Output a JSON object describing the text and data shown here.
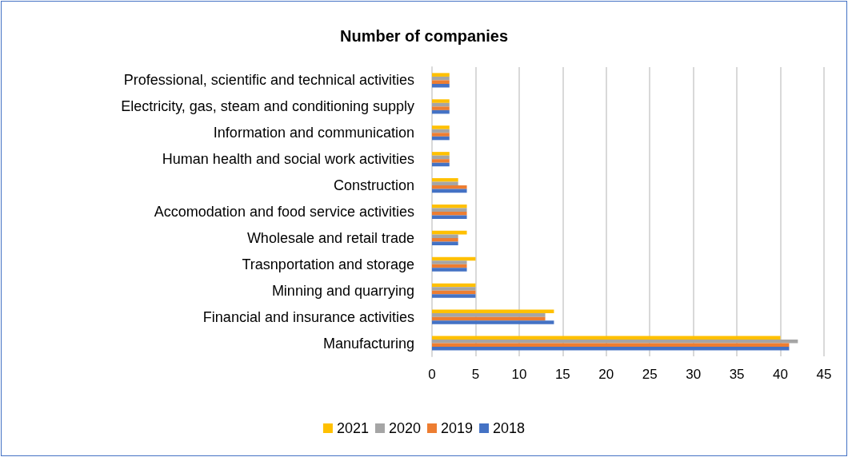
{
  "chart_data": {
    "type": "bar",
    "orientation": "horizontal",
    "title": "Number of companies",
    "categories": [
      "Professional, scientific and technical activities",
      "Electricity, gas, steam and conditioning supply",
      "Information and communication",
      "Human health and social work activities",
      "Construction",
      "Accomodation and food service activities",
      "Wholesale and retail trade",
      "Trasnportation and storage",
      "Minning and quarrying",
      "Financial and insurance activities",
      "Manufacturing"
    ],
    "series": [
      {
        "name": "2021",
        "color": "#ffc000",
        "values": [
          2,
          2,
          2,
          2,
          3,
          4,
          4,
          5,
          5,
          14,
          40
        ]
      },
      {
        "name": "2020",
        "color": "#a5a5a5",
        "values": [
          2,
          2,
          2,
          2,
          3,
          4,
          3,
          4,
          5,
          13,
          42
        ]
      },
      {
        "name": "2019",
        "color": "#ed7d31",
        "values": [
          2,
          2,
          2,
          2,
          4,
          4,
          3,
          4,
          5,
          13,
          41
        ]
      },
      {
        "name": "2018",
        "color": "#4472c4",
        "values": [
          2,
          2,
          2,
          2,
          4,
          4,
          3,
          4,
          5,
          14,
          41
        ]
      }
    ],
    "xlim": [
      0,
      45
    ],
    "xticks": [
      0,
      5,
      10,
      15,
      20,
      25,
      30,
      35,
      40,
      45
    ],
    "grid": "x",
    "legend": "bottom"
  }
}
